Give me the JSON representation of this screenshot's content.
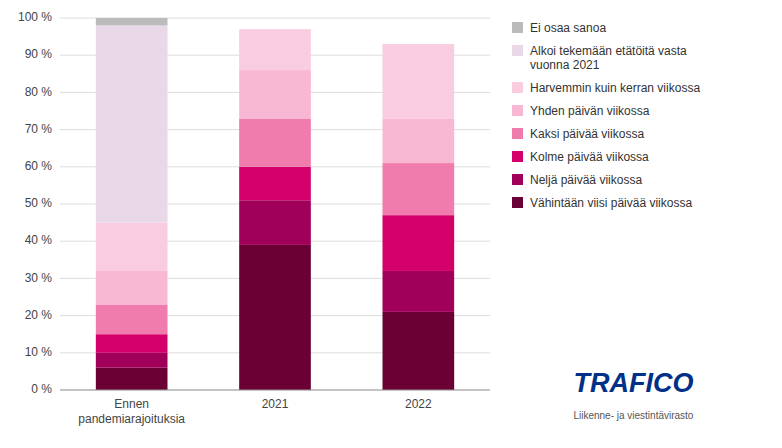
{
  "chart_data": {
    "type": "bar",
    "stacked": true,
    "grid": true,
    "legend": "right",
    "categories": [
      "Ennen\npandemiarajoituksia",
      "2021",
      "2022"
    ],
    "series": [
      {
        "name": "Vähintään viisi päivää viikossa",
        "color": "#6B0035",
        "values": [
          6,
          39,
          21
        ]
      },
      {
        "name": "Neljä päivää viikossa",
        "color": "#A0005A",
        "values": [
          4,
          12,
          11
        ]
      },
      {
        "name": "Kolme päivää viikossa",
        "color": "#D4006A",
        "values": [
          5,
          9,
          15
        ]
      },
      {
        "name": "Kaksi päivää viikossa",
        "color": "#F07BAD",
        "values": [
          8,
          13,
          14
        ]
      },
      {
        "name": "Yhden päivän viikossa",
        "color": "#F8B8D4",
        "values": [
          9,
          13,
          12
        ]
      },
      {
        "name": "Harvemmin kuin kerran viikossa",
        "color": "#FACCDF",
        "values": [
          13,
          11,
          20
        ]
      },
      {
        "name": "Alkoi tekemään etätöitä vasta\nvuonna 2021",
        "color": "#E8D8E8",
        "values": [
          53,
          0,
          0
        ]
      },
      {
        "name": "Ei osaa sanoa",
        "color": "#BBBBBB",
        "values": [
          2,
          0,
          0
        ]
      }
    ],
    "ylim": [
      0,
      100
    ],
    "yticks": [
      {
        "value": 0,
        "label": "0 %"
      },
      {
        "value": 10,
        "label": "10 %"
      },
      {
        "value": 20,
        "label": "20 %"
      },
      {
        "value": 30,
        "label": "30 %"
      },
      {
        "value": 40,
        "label": "40 %"
      },
      {
        "value": 50,
        "label": "50 %"
      },
      {
        "value": 60,
        "label": "60 %"
      },
      {
        "value": 70,
        "label": "70 %"
      },
      {
        "value": 80,
        "label": "80 %"
      },
      {
        "value": 90,
        "label": "90 %"
      },
      {
        "value": 100,
        "label": "100 %"
      }
    ],
    "annotations": [
      "TRAFICO",
      "Liikenne- ja viestintävirasto"
    ]
  }
}
